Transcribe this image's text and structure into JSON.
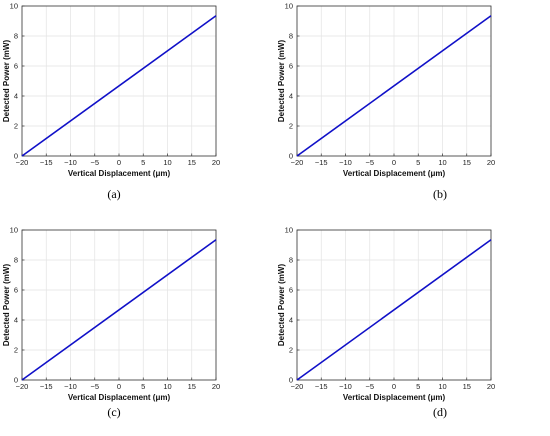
{
  "chart_data": [
    {
      "type": "line",
      "caption": "(a)",
      "xlabel": "Vertical Displacement (μm)",
      "ylabel": "Detected Power (mW)",
      "xlim": [
        -20,
        20
      ],
      "ylim": [
        0,
        10
      ],
      "xticks": [
        -20,
        -15,
        -10,
        -5,
        0,
        5,
        10,
        15,
        20
      ],
      "yticks": [
        0,
        2,
        4,
        6,
        8,
        10
      ],
      "grid": true,
      "series": [
        {
          "color": "#1010c8",
          "x": [
            -20,
            20
          ],
          "y": [
            0,
            9.35
          ]
        }
      ]
    },
    {
      "type": "line",
      "caption": "(b)",
      "xlabel": "Vertical Displacement (μm)",
      "ylabel": "Detected Power (mW)",
      "xlim": [
        -20,
        20
      ],
      "ylim": [
        0,
        10
      ],
      "xticks": [
        -20,
        -15,
        -10,
        -5,
        0,
        5,
        10,
        15,
        20
      ],
      "yticks": [
        0,
        2,
        4,
        6,
        8,
        10
      ],
      "grid": true,
      "series": [
        {
          "color": "#1010c8",
          "x": [
            -20,
            20
          ],
          "y": [
            0,
            9.35
          ]
        }
      ]
    },
    {
      "type": "line",
      "caption": "(c)",
      "xlabel": "Vertical Displacement (μm)",
      "ylabel": "Detected Power (mW)",
      "xlim": [
        -20,
        20
      ],
      "ylim": [
        0,
        10
      ],
      "xticks": [
        -20,
        -15,
        -10,
        -5,
        0,
        5,
        10,
        15,
        20
      ],
      "yticks": [
        0,
        2,
        4,
        6,
        8,
        10
      ],
      "grid": true,
      "series": [
        {
          "color": "#1010c8",
          "x": [
            -20,
            20
          ],
          "y": [
            0,
            9.35
          ]
        }
      ]
    },
    {
      "type": "line",
      "caption": "(d)",
      "xlabel": "Vertical Displacement (μm)",
      "ylabel": "Detected Power (mW)",
      "xlim": [
        -20,
        20
      ],
      "ylim": [
        0,
        10
      ],
      "xticks": [
        -20,
        -15,
        -10,
        -5,
        0,
        5,
        10,
        15,
        20
      ],
      "yticks": [
        0,
        2,
        4,
        6,
        8,
        10
      ],
      "grid": true,
      "series": [
        {
          "color": "#1010c8",
          "x": [
            -20,
            20
          ],
          "y": [
            0,
            9.35
          ]
        }
      ]
    }
  ]
}
